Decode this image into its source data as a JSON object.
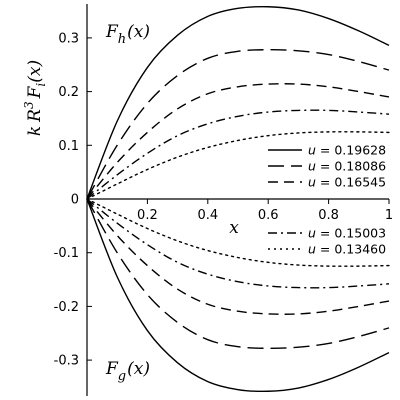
{
  "chart_data": {
    "type": "line",
    "xlabel": "x",
    "ylabel_parts": {
      "k": "k",
      "R": "R",
      "exp": "3",
      "F": "F",
      "sub": "i",
      "arg": "(x)"
    },
    "xlim": [
      0,
      1
    ],
    "ylim": [
      -0.36,
      0.36
    ],
    "x_ticks": [
      {
        "value": 0.2,
        "label": "0.2"
      },
      {
        "value": 0.4,
        "label": "0.4"
      },
      {
        "value": 0.6,
        "label": "0.6"
      },
      {
        "value": 0.8,
        "label": "0.8"
      },
      {
        "value": 1.0,
        "label": "1"
      }
    ],
    "y_ticks": [
      {
        "value": 0.3,
        "label": "0.3"
      },
      {
        "value": 0.2,
        "label": "0.2"
      },
      {
        "value": 0.1,
        "label": "0.1"
      },
      {
        "value": 0,
        "label": "0"
      },
      {
        "value": -0.1,
        "label": "-0.1"
      },
      {
        "value": -0.2,
        "label": "-0.2"
      },
      {
        "value": -0.3,
        "label": "-0.3"
      }
    ],
    "curve_labels": [
      {
        "name": "h",
        "text_main": "F",
        "text_sub": "h",
        "text_arg": "(x)"
      },
      {
        "name": "g",
        "text_main": "F",
        "text_sub": "g",
        "text_arg": "(x)"
      }
    ],
    "legend_var": "u",
    "x": [
      0,
      0.1,
      0.2,
      0.3,
      0.4,
      0.5,
      0.6,
      0.7,
      0.8,
      0.9,
      1.0
    ],
    "series": [
      {
        "name": "u = 0.19628",
        "u": "0.19628",
        "dash": "solid",
        "h": [
          0,
          0.145,
          0.245,
          0.305,
          0.34,
          0.355,
          0.358,
          0.352,
          0.336,
          0.313,
          0.286
        ],
        "g": [
          0,
          -0.145,
          -0.245,
          -0.305,
          -0.34,
          -0.355,
          -0.358,
          -0.352,
          -0.336,
          -0.313,
          -0.286
        ]
      },
      {
        "name": "u = 0.18086",
        "u": "0.18086",
        "dash": "longdash",
        "h": [
          0,
          0.1,
          0.178,
          0.23,
          0.262,
          0.275,
          0.278,
          0.276,
          0.269,
          0.256,
          0.24
        ],
        "g": [
          0,
          -0.1,
          -0.178,
          -0.23,
          -0.262,
          -0.275,
          -0.278,
          -0.276,
          -0.269,
          -0.256,
          -0.24
        ]
      },
      {
        "name": "u = 0.16545",
        "u": "0.16545",
        "dash": "dash",
        "h": [
          0,
          0.068,
          0.124,
          0.168,
          0.196,
          0.209,
          0.214,
          0.214,
          0.209,
          0.2,
          0.19
        ],
        "g": [
          0,
          -0.068,
          -0.124,
          -0.168,
          -0.196,
          -0.209,
          -0.214,
          -0.214,
          -0.209,
          -0.2,
          -0.19
        ]
      },
      {
        "name": "u = 0.15003",
        "u": "0.15003",
        "dash": "dashdot",
        "h": [
          0,
          0.045,
          0.085,
          0.118,
          0.14,
          0.154,
          0.162,
          0.165,
          0.165,
          0.162,
          0.158
        ],
        "g": [
          0,
          -0.045,
          -0.085,
          -0.118,
          -0.14,
          -0.154,
          -0.162,
          -0.165,
          -0.165,
          -0.162,
          -0.158
        ]
      },
      {
        "name": "u = 0.13460",
        "u": "0.13460",
        "dash": "dot",
        "h": [
          0,
          0.028,
          0.055,
          0.078,
          0.096,
          0.109,
          0.118,
          0.123,
          0.125,
          0.125,
          0.124
        ],
        "g": [
          0,
          -0.028,
          -0.055,
          -0.078,
          -0.096,
          -0.109,
          -0.118,
          -0.123,
          -0.125,
          -0.125,
          -0.124
        ]
      }
    ],
    "legend": [
      {
        "placement": "upper-right",
        "entries": [
          0,
          1,
          2
        ]
      },
      {
        "placement": "lower-right",
        "entries": [
          3,
          4
        ]
      }
    ]
  }
}
